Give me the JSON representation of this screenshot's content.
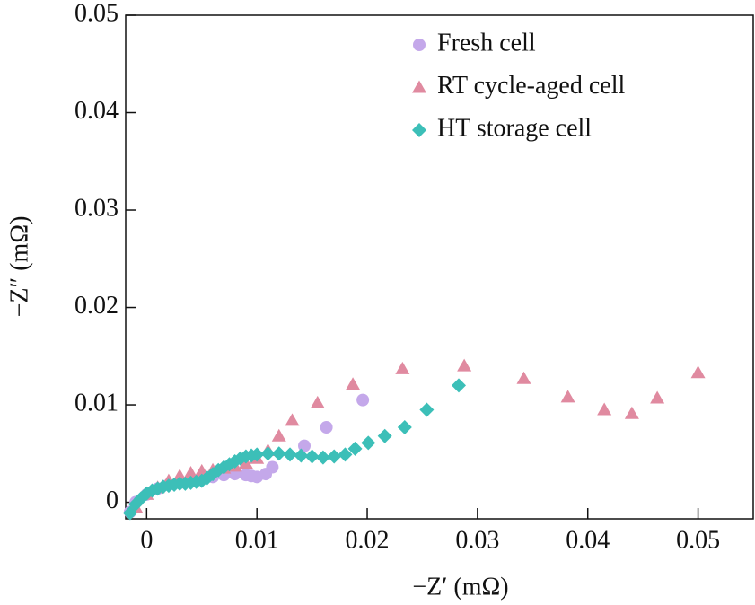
{
  "chart_data": {
    "type": "scatter",
    "xlabel": "−Z′ (mΩ)",
    "ylabel": "−Z″ (mΩ)",
    "xlim": [
      -0.0019,
      0.055
    ],
    "ylim": [
      -0.0017,
      0.05
    ],
    "xticks": [
      0,
      0.01,
      0.02,
      0.03,
      0.04,
      0.05
    ],
    "yticks": [
      0,
      0.01,
      0.02,
      0.03,
      0.04,
      0.05
    ],
    "legend": "upper right",
    "series": [
      {
        "name": "Fresh cell",
        "color": "#c4a8ea",
        "marker": "circle",
        "x": [
          -0.0015,
          -0.001,
          0,
          0.001,
          0.002,
          0.003,
          0.004,
          0.005,
          0.006,
          0.007,
          0.008,
          0.009,
          0.0095,
          0.01,
          0.0108,
          0.0114,
          0.0143,
          0.0163,
          0.0196
        ],
        "values": [
          -0.001,
          0.0,
          0.0008,
          0.0014,
          0.0018,
          0.002,
          0.0022,
          0.0024,
          0.0026,
          0.0028,
          0.0029,
          0.0028,
          0.0027,
          0.0026,
          0.0029,
          0.0036,
          0.0058,
          0.0077,
          0.0105
        ]
      },
      {
        "name": "RT cycle-aged cell",
        "color": "#e08aa0",
        "marker": "triangle",
        "x": [
          -0.001,
          0,
          0.001,
          0.002,
          0.003,
          0.004,
          0.005,
          0.006,
          0.007,
          0.008,
          0.009,
          0.01,
          0.011,
          0.012,
          0.0132,
          0.0155,
          0.0187,
          0.0232,
          0.0288,
          0.0342,
          0.0382,
          0.0415,
          0.044,
          0.0463,
          0.05
        ],
        "values": [
          -0.0005,
          0.0008,
          0.0015,
          0.0022,
          0.0027,
          0.003,
          0.0032,
          0.0033,
          0.0035,
          0.0037,
          0.004,
          0.0045,
          0.0053,
          0.0068,
          0.0084,
          0.0102,
          0.0121,
          0.0137,
          0.014,
          0.0127,
          0.0108,
          0.0095,
          0.0091,
          0.0107,
          0.0133
        ]
      },
      {
        "name": "HT storage cell",
        "color": "#3cbfb8",
        "marker": "diamond",
        "x": [
          -0.0015,
          -0.001,
          -0.0005,
          0,
          0.0005,
          0.001,
          0.0015,
          0.002,
          0.0025,
          0.003,
          0.0035,
          0.004,
          0.0045,
          0.005,
          0.0055,
          0.006,
          0.0065,
          0.007,
          0.0075,
          0.008,
          0.0085,
          0.009,
          0.0095,
          0.01,
          0.011,
          0.012,
          0.013,
          0.014,
          0.015,
          0.016,
          0.017,
          0.018,
          0.0189,
          0.0201,
          0.0216,
          0.0234,
          0.0254,
          0.0283
        ],
        "values": [
          -0.0011,
          -0.0002,
          0.0004,
          0.0009,
          0.0012,
          0.0014,
          0.0016,
          0.0017,
          0.0018,
          0.0019,
          0.0019,
          0.002,
          0.0021,
          0.0022,
          0.0025,
          0.0029,
          0.0033,
          0.0036,
          0.0039,
          0.0042,
          0.0045,
          0.0047,
          0.0048,
          0.0049,
          0.005,
          0.005,
          0.0049,
          0.0048,
          0.0047,
          0.0046,
          0.0047,
          0.0049,
          0.0055,
          0.0061,
          0.0068,
          0.0077,
          0.0095,
          0.012
        ]
      }
    ]
  }
}
